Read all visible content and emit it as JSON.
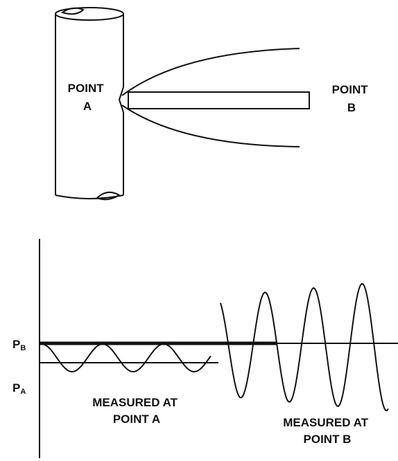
{
  "diagram": {
    "point_a": [
      "POINT",
      "A"
    ],
    "point_b": [
      "POINT",
      "B"
    ],
    "level_b": {
      "main": "P",
      "sub": "B"
    },
    "level_a": {
      "main": "P",
      "sub": "A"
    },
    "measured_a": [
      "MEASURED AT",
      "POINT A"
    ],
    "measured_b": [
      "MEASURED AT",
      "POINT B"
    ]
  }
}
